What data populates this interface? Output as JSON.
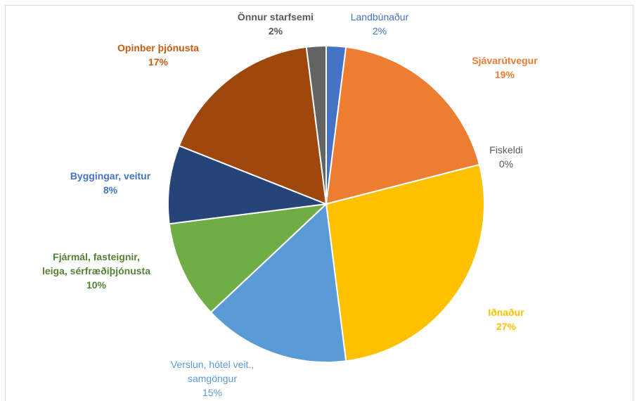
{
  "chart_data": {
    "type": "pie",
    "categories": [
      "Landbúnaður",
      "Sjávarútvegur",
      "Fiskeldi",
      "Iðnaður",
      "Verslun, hótel veit., samgöngur",
      "Fjármál, fasteignir, leiga, sérfræðiþjónusta",
      "Byggingar, veitur",
      "Opinber þjónusta",
      "Önnur starfsemi"
    ],
    "values": [
      2,
      19,
      0,
      27,
      15,
      10,
      8,
      17,
      2
    ],
    "value_labels": [
      "2%",
      "19%",
      "0%",
      "27%",
      "15%",
      "10%",
      "8%",
      "17%",
      "2%"
    ],
    "colors": [
      "#4472c4",
      "#ed7d31",
      "#a5a5a5",
      "#ffc000",
      "#5b9bd5",
      "#70ad47",
      "#264478",
      "#9e480e",
      "#636363"
    ]
  }
}
